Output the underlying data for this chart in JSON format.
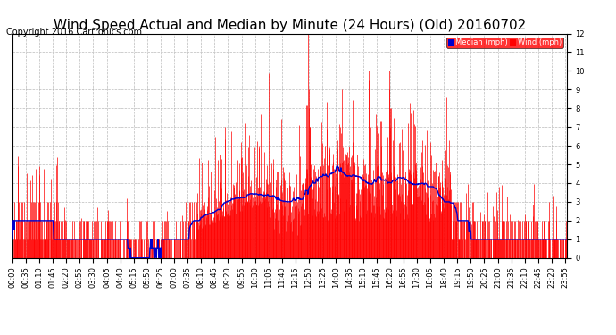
{
  "title": "Wind Speed Actual and Median by Minute (24 Hours) (Old) 20160702",
  "copyright": "Copyright 2016 Cartronics.com",
  "legend_median_label": "Median (mph)",
  "legend_wind_label": "Wind (mph)",
  "legend_median_color": "#0000cc",
  "legend_wind_color": "#ff0000",
  "legend_bg_color": "#ff0000",
  "y_min": 0.0,
  "y_max": 12.0,
  "y_ticks": [
    0.0,
    1.0,
    2.0,
    3.0,
    4.0,
    5.0,
    6.0,
    7.0,
    8.0,
    9.0,
    10.0,
    11.0,
    12.0
  ],
  "background_color": "#ffffff",
  "plot_bg_color": "#ffffff",
  "grid_color": "#aaaaaa",
  "bar_color": "#ff0000",
  "line_color": "#0000cc",
  "title_fontsize": 11,
  "copyright_fontsize": 7,
  "tick_fontsize": 6,
  "n_minutes": 1440,
  "seed": 42
}
